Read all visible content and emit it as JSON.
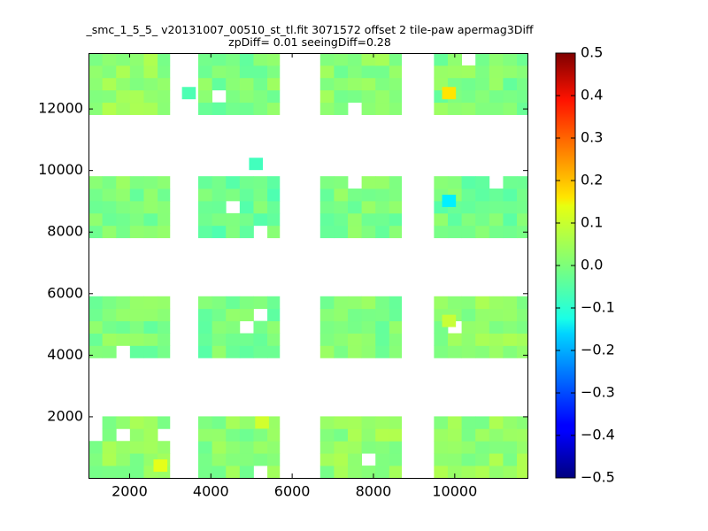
{
  "chart_data": {
    "type": "heatmap",
    "title": "_smc_1_5_5_ v20131007_00510_st_tl.fit 3071572 offset 2 tile-paw apermag3Diff",
    "subtitle": "zpDiff= 0.01 seeingDiff=0.28",
    "xlim": [
      1000,
      11800
    ],
    "ylim": [
      0,
      13800
    ],
    "x_ticks": [
      2000,
      4000,
      6000,
      8000,
      10000
    ],
    "x_tick_labels": [
      "2000",
      "4000",
      "6000",
      "8000",
      "10000"
    ],
    "y_ticks": [
      2000,
      4000,
      6000,
      8000,
      10000,
      12000
    ],
    "y_tick_labels": [
      "2000",
      "4000",
      "6000",
      "8000",
      "10000",
      "12000"
    ],
    "colorbar": {
      "min": -0.5,
      "max": 0.5,
      "colormap": "jet",
      "ticks": [
        0.5,
        0.4,
        0.3,
        0.2,
        0.1,
        0.0,
        -0.1,
        -0.2,
        -0.3,
        -0.4,
        -0.5
      ],
      "tick_labels": [
        "0.5",
        "0.4",
        "0.3",
        "0.2",
        "0.1",
        "0.0",
        "−0.1",
        "−0.2",
        "−0.3",
        "−0.4",
        "−0.5"
      ]
    },
    "cell_size": [
      340,
      400
    ],
    "detectors": [
      {
        "x": [
          1000,
          3000
        ],
        "y": [
          11800,
          13800
        ],
        "base": 0.02
      },
      {
        "x": [
          3700,
          5700
        ],
        "y": [
          11800,
          13800
        ],
        "base": 0.0
      },
      {
        "x": [
          6700,
          8700
        ],
        "y": [
          11800,
          13800
        ],
        "base": 0.01
      },
      {
        "x": [
          9500,
          11800
        ],
        "y": [
          11800,
          13800
        ],
        "base": 0.0
      },
      {
        "x": [
          1000,
          3000
        ],
        "y": [
          7800,
          9800
        ],
        "base": 0.0
      },
      {
        "x": [
          3700,
          5700
        ],
        "y": [
          7800,
          9800
        ],
        "base": -0.02
      },
      {
        "x": [
          6700,
          8700
        ],
        "y": [
          7800,
          9800
        ],
        "base": 0.0
      },
      {
        "x": [
          9500,
          11800
        ],
        "y": [
          7800,
          9800
        ],
        "base": -0.01
      },
      {
        "x": [
          1000,
          3000
        ],
        "y": [
          3900,
          5900
        ],
        "base": 0.0
      },
      {
        "x": [
          3700,
          5700
        ],
        "y": [
          3900,
          5900
        ],
        "base": -0.01
      },
      {
        "x": [
          6700,
          8700
        ],
        "y": [
          3900,
          5900
        ],
        "base": 0.0
      },
      {
        "x": [
          9500,
          11800
        ],
        "y": [
          3900,
          5900
        ],
        "base": 0.02
      },
      {
        "x": [
          1000,
          3000
        ],
        "y": [
          0,
          2000
        ],
        "base": 0.02
      },
      {
        "x": [
          3700,
          5700
        ],
        "y": [
          0,
          2000
        ],
        "base": 0.01
      },
      {
        "x": [
          6700,
          8700
        ],
        "y": [
          0,
          2000
        ],
        "base": 0.02
      },
      {
        "x": [
          9500,
          11800
        ],
        "y": [
          0,
          2000
        ],
        "base": 0.02
      }
    ],
    "highlight_cells": [
      {
        "x": 9700,
        "y": 12300,
        "value": 0.15
      },
      {
        "x": 3300,
        "y": 12300,
        "value": -0.05
      },
      {
        "x": 9700,
        "y": 8800,
        "value": -0.14
      },
      {
        "x": 4950,
        "y": 10000,
        "value": -0.06
      },
      {
        "x": 9700,
        "y": 4900,
        "value": 0.07
      },
      {
        "x": 2600,
        "y": 200,
        "value": 0.1
      },
      {
        "x": 5100,
        "y": 1600,
        "value": 0.08
      }
    ]
  }
}
